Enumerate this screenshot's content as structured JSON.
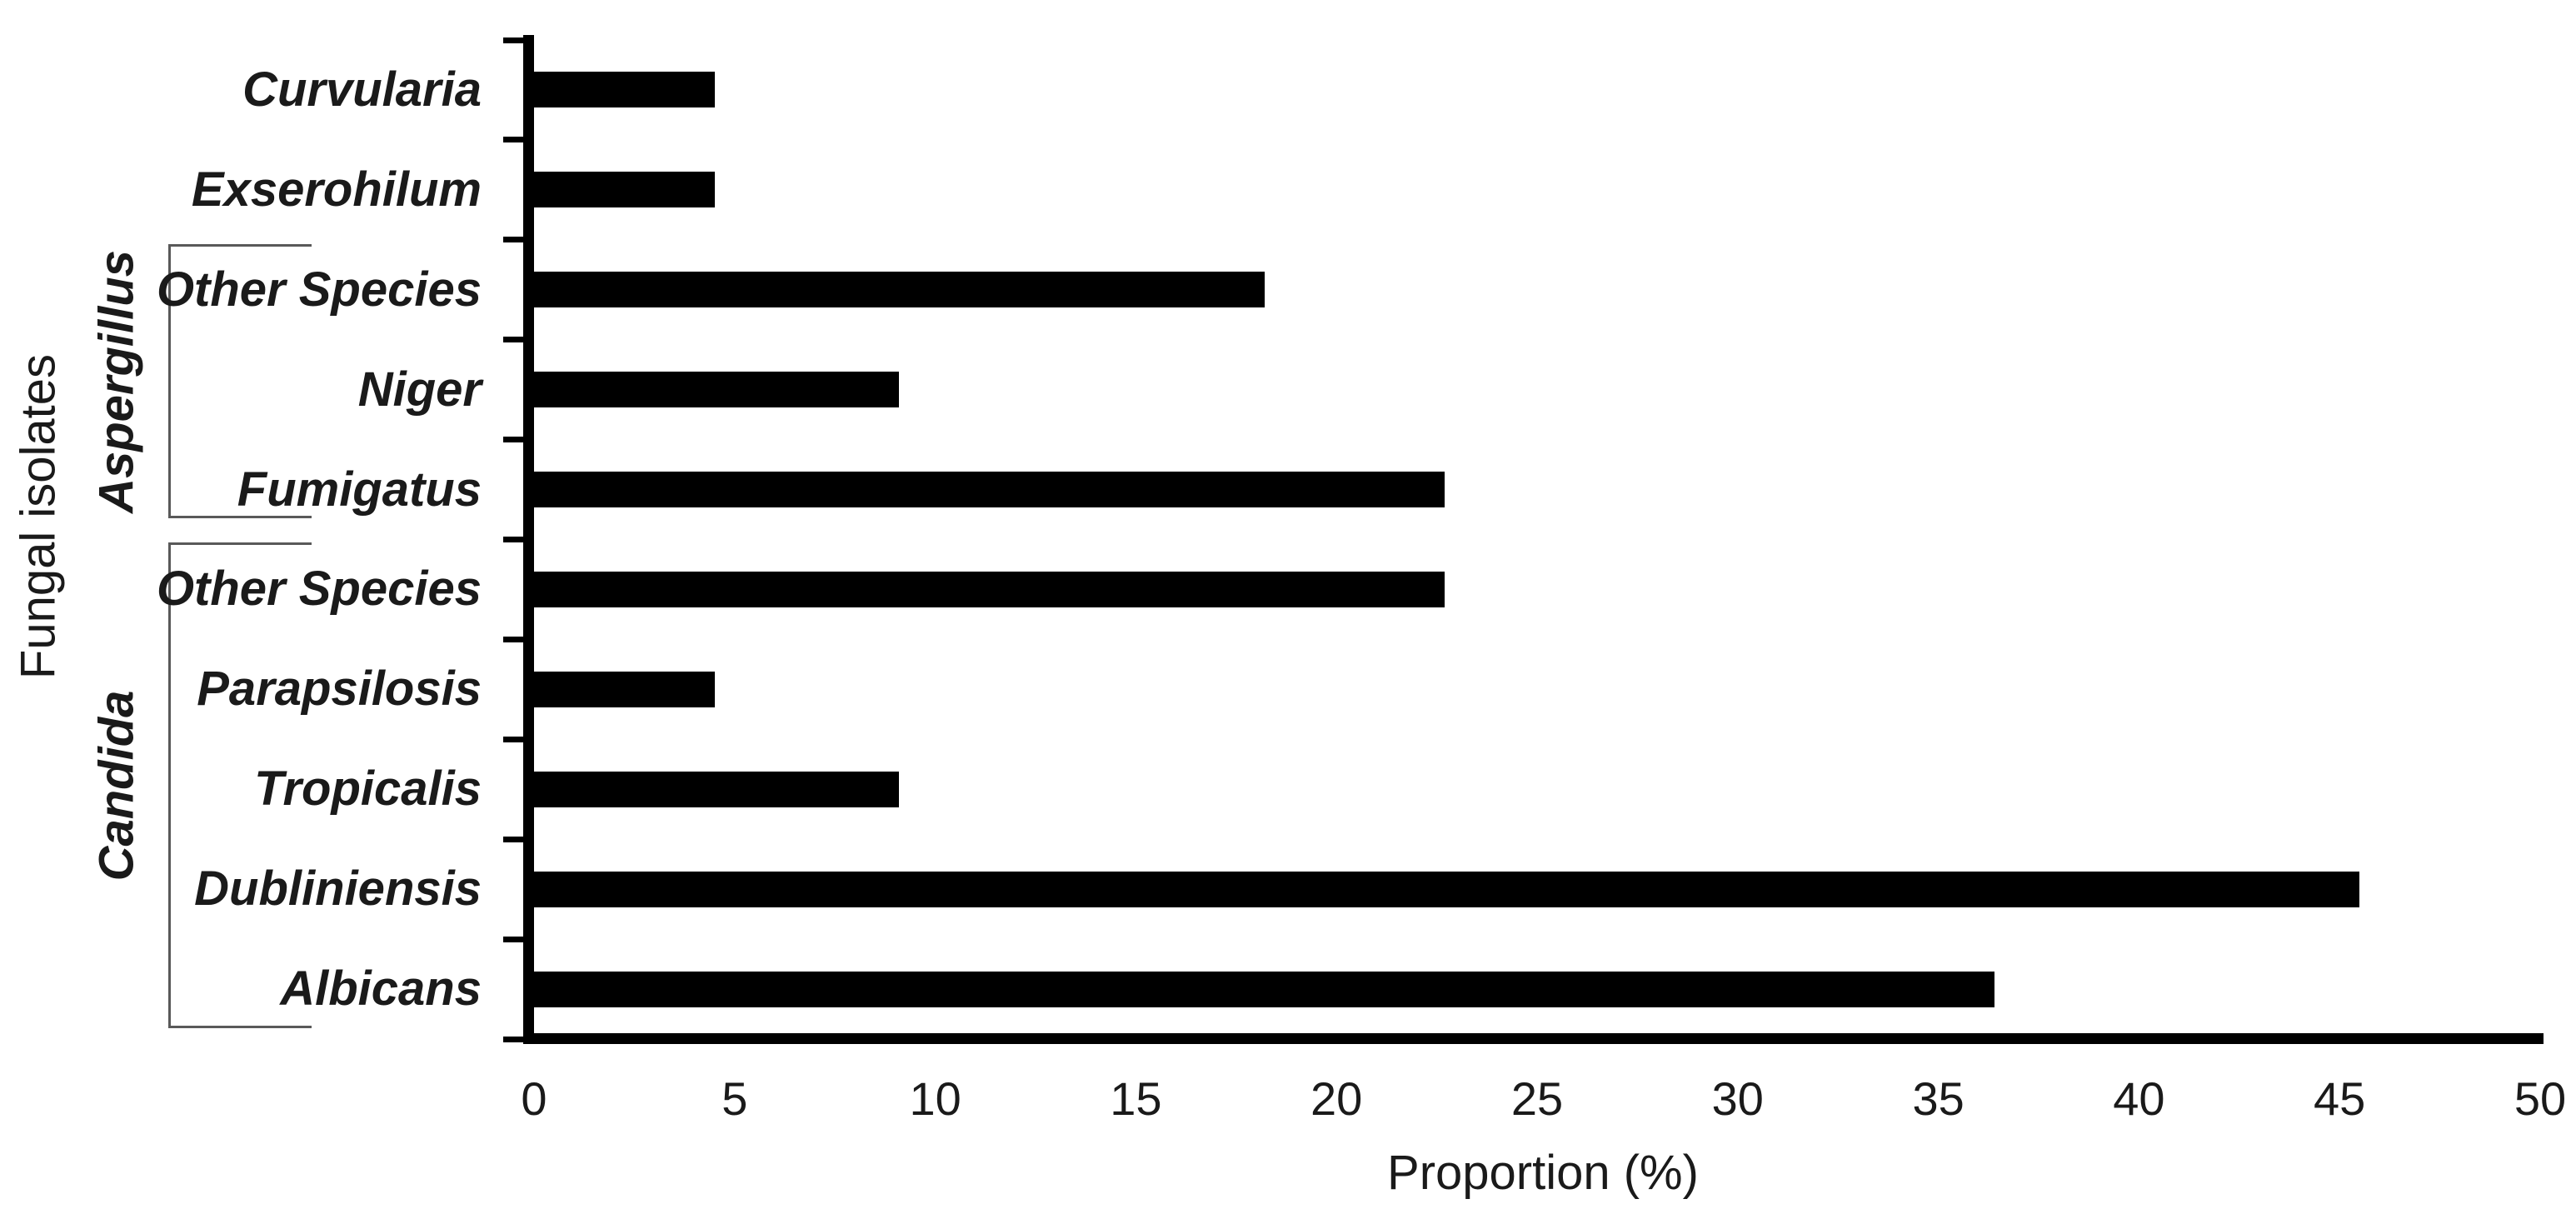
{
  "chart_data": {
    "type": "bar",
    "orientation": "horizontal",
    "title": "",
    "xlabel": "Proportion (%)",
    "ylabel": "Fungal isolates",
    "xlim": [
      0,
      50
    ],
    "xticks": [
      0,
      5,
      10,
      15,
      20,
      25,
      30,
      35,
      40,
      45,
      50
    ],
    "grid": false,
    "legend": null,
    "bar_color": "#000000",
    "axis_color": "#000000",
    "bracket_color": "#595959",
    "categories": [
      "Curvularia",
      "Exserohilum",
      "Other Species",
      "Niger",
      "Fumigatus",
      "Other Species",
      "Parapsilosis",
      "Tropicalis",
      "Dubliniensis",
      "Albicans"
    ],
    "values": [
      4.5,
      4.5,
      18.2,
      9.1,
      22.7,
      22.7,
      4.5,
      9.1,
      45.5,
      36.4
    ],
    "groups": [
      {
        "label": "Aspergillus",
        "first_row": 2,
        "last_row": 4
      },
      {
        "label": "Candida",
        "first_row": 5,
        "last_row": 9
      }
    ]
  }
}
